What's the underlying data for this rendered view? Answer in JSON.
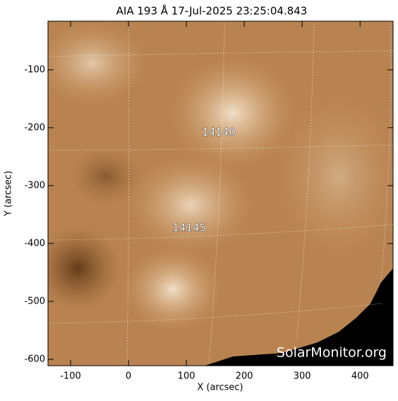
{
  "chart_data": {
    "type": "image",
    "title": "AIA 193 Å 17-Jul-2025 23:25:04.843",
    "x_label": "X (arcsec)",
    "y_label": "Y (arcsec)",
    "xlim": [
      -139,
      457
    ],
    "ylim": [
      -611,
      -16
    ],
    "xticks": [
      -100,
      0,
      100,
      200,
      300,
      400
    ],
    "yticks": [
      -100,
      -200,
      -300,
      -400,
      -500,
      -600
    ],
    "annotations": [
      {
        "label": "14140",
        "x": 156,
        "y": -208
      },
      {
        "label": "14145",
        "x": 105,
        "y": -373
      }
    ],
    "watermark": "SolarMonitor.org"
  }
}
